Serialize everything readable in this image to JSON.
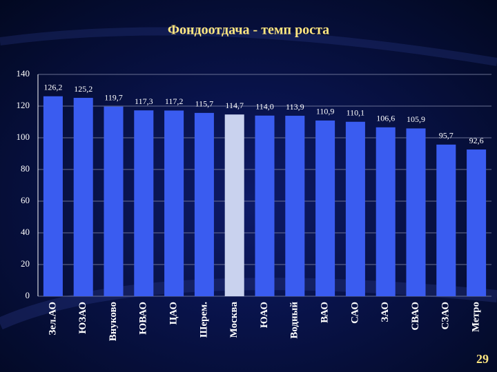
{
  "chart_data": {
    "type": "bar",
    "title": "Фондоотдача - темп роста",
    "categories": [
      "Зел.АО",
      "ЮЗАО",
      "Внуково",
      "ЮВАО",
      "ЦАО",
      "Шерем.",
      "Москва",
      "ЮАО",
      "Водный",
      "ВАО",
      "САО",
      "ЗАО",
      "СВАО",
      "СЗАО",
      "Метро"
    ],
    "values": [
      126.2,
      125.2,
      119.7,
      117.3,
      117.2,
      115.7,
      114.7,
      114.0,
      113.9,
      110.9,
      110.1,
      106.6,
      105.9,
      95.7,
      92.6
    ],
    "value_labels": [
      "126,2",
      "125,2",
      "119,7",
      "117,3",
      "117,2",
      "115,7",
      "114,7",
      "114,0",
      "113,9",
      "110,9",
      "110,1",
      "106,6",
      "105,9",
      "95,7",
      "92,6"
    ],
    "colors": [
      "#3a5cf0",
      "#3a5cf0",
      "#3a5cf0",
      "#3a5cf0",
      "#3a5cf0",
      "#3a5cf0",
      "#c9d2ee",
      "#3a5cf0",
      "#3a5cf0",
      "#3a5cf0",
      "#3a5cf0",
      "#3a5cf0",
      "#3a5cf0",
      "#3a5cf0",
      "#3a5cf0"
    ],
    "ylim": [
      0,
      140
    ],
    "yticks": [
      0,
      20,
      40,
      60,
      80,
      100,
      120,
      140
    ],
    "grid": true
  },
  "page_number": "29"
}
